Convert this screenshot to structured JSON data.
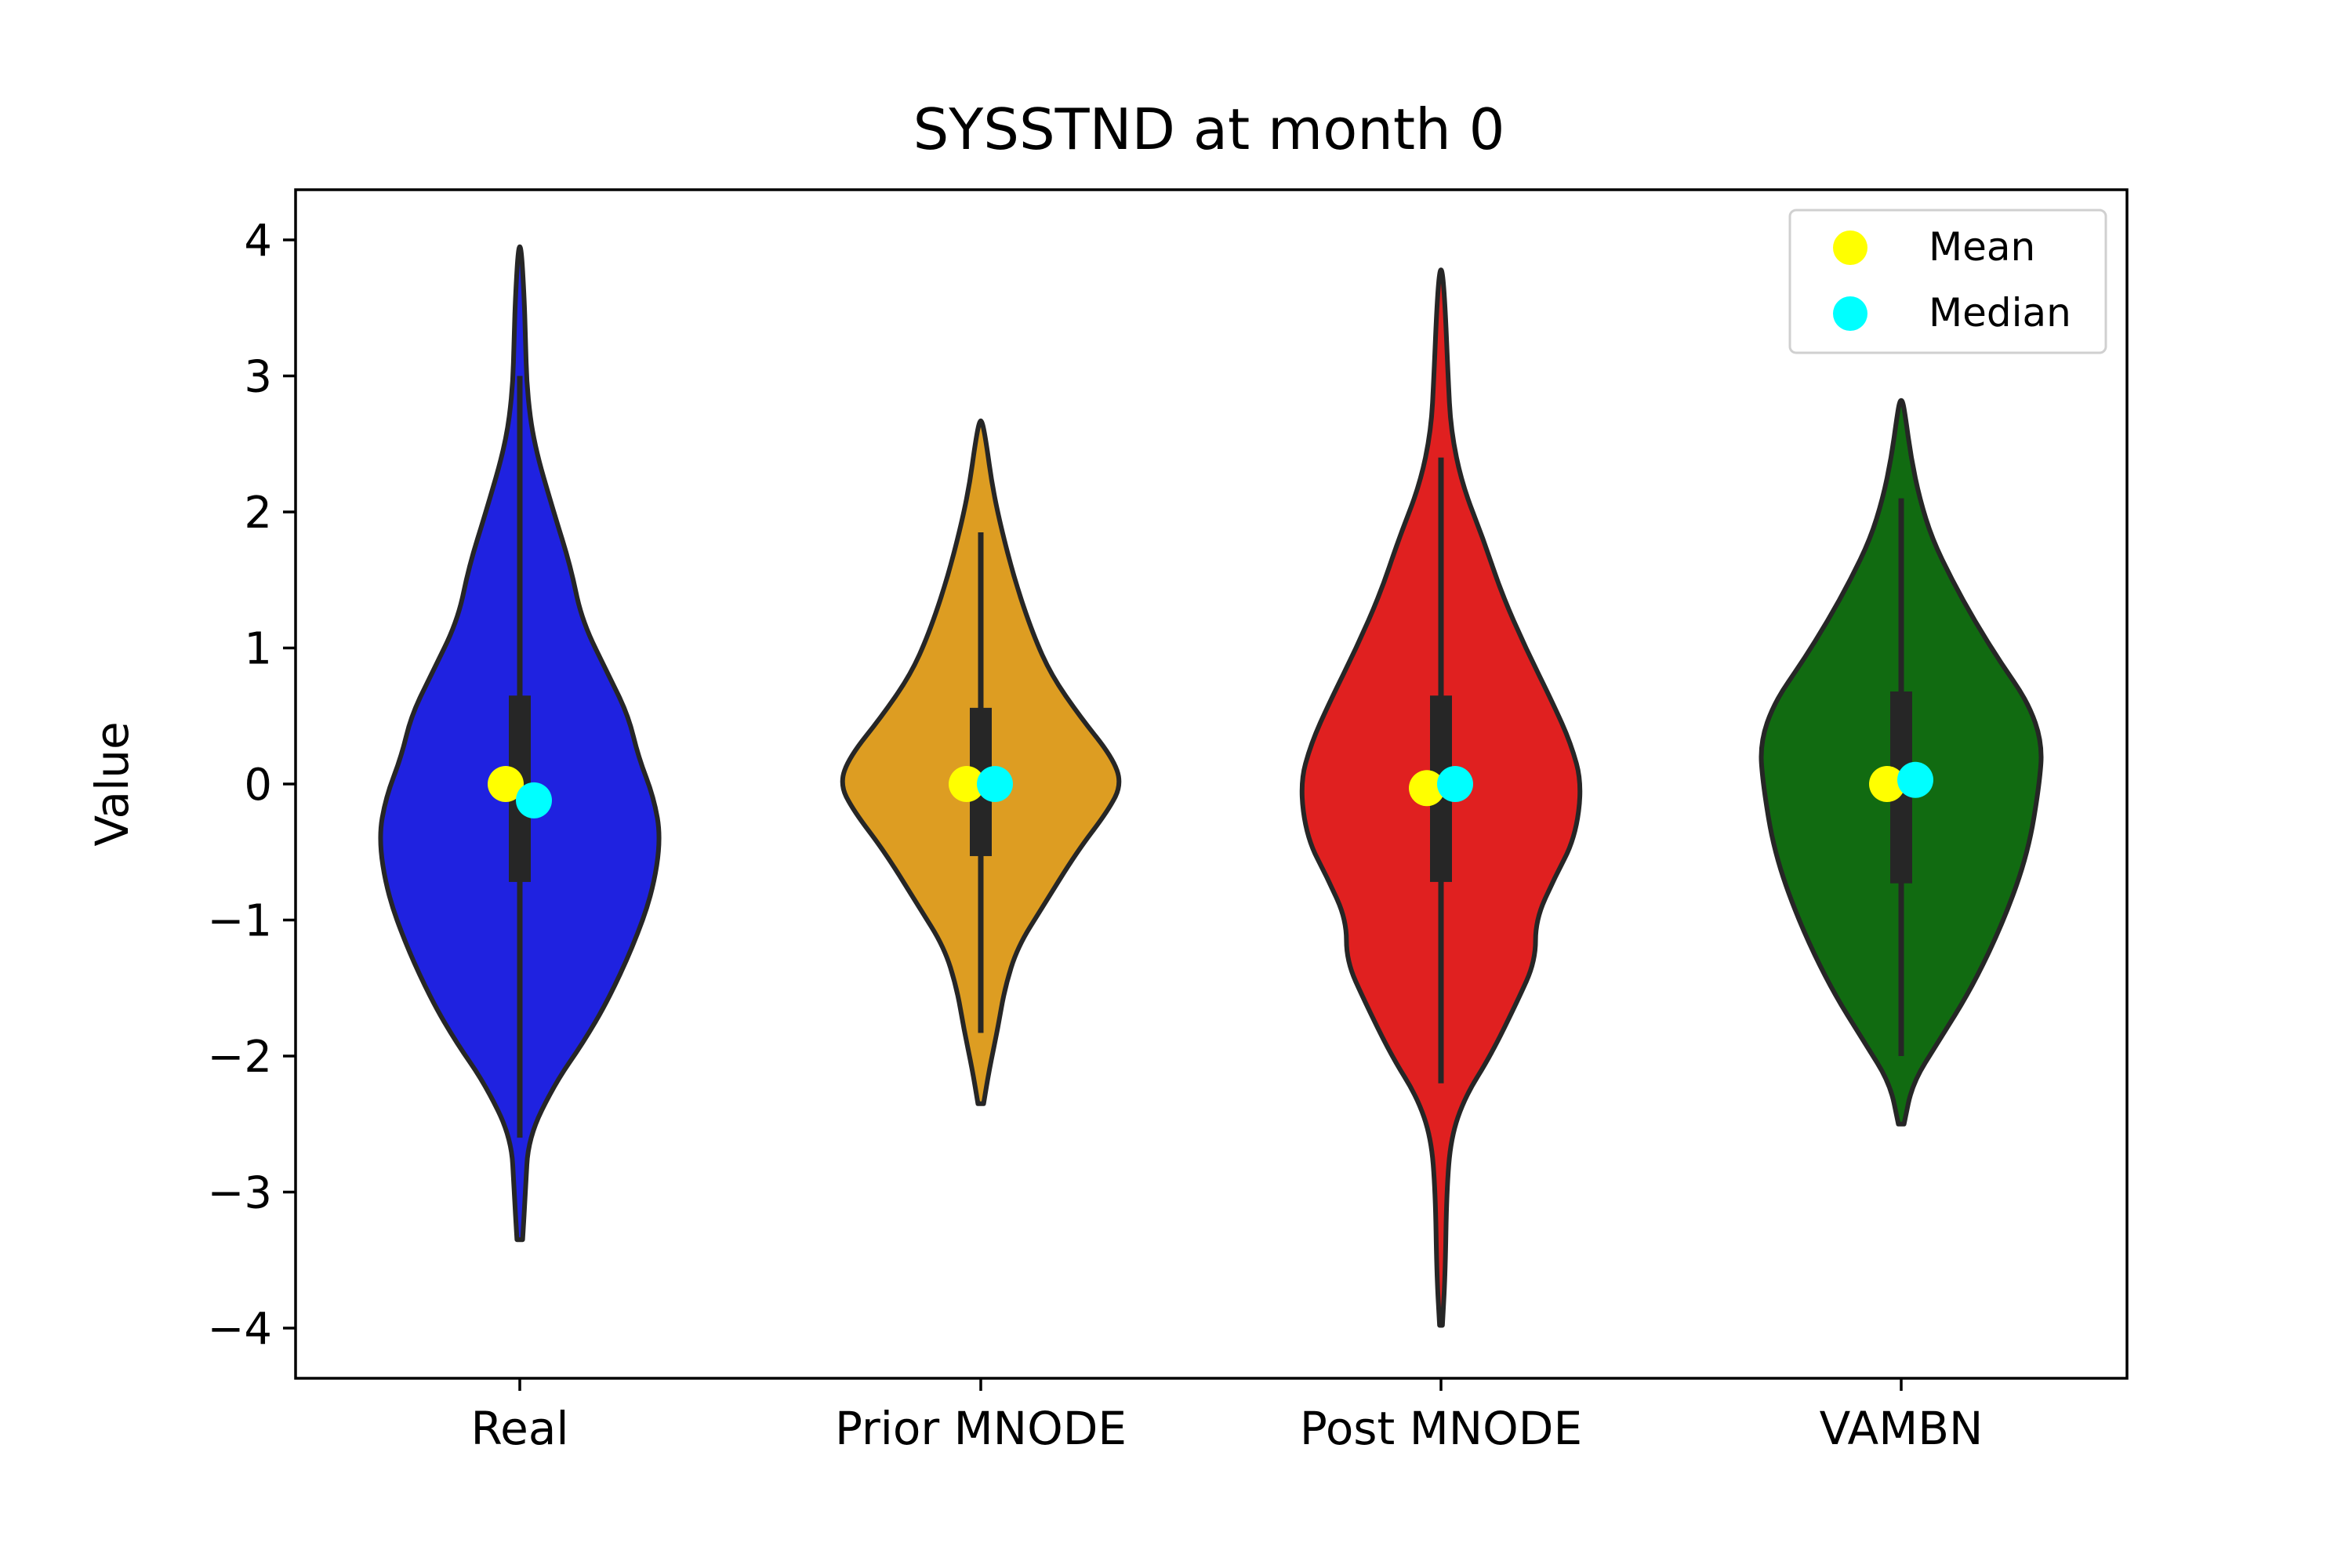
{
  "chart_data": {
    "type": "violin",
    "title": "SYSSTND at month 0",
    "xlabel": "",
    "ylabel": "Value",
    "ylim": [
      -4.4,
      4.35
    ],
    "yticks": [
      4,
      3,
      2,
      1,
      0,
      -1,
      -2,
      -3,
      -4
    ],
    "ytick_labels": [
      "4",
      "3",
      "2",
      "1",
      "0",
      "−1",
      "−2",
      "−3",
      "−4"
    ],
    "grid": false,
    "legend_position": "top-right",
    "legend": [
      {
        "label": "Mean",
        "color": "#ffff00"
      },
      {
        "label": "Median",
        "color": "#00ffff"
      }
    ],
    "categories": [
      "Real",
      "Prior MNODE",
      "Post MNODE",
      "VAMBN"
    ],
    "series": [
      {
        "category": "Real",
        "color": "#1f22e0",
        "min": -3.35,
        "max": 3.95,
        "q1": -0.72,
        "q3": 0.65,
        "whisker_low": -2.6,
        "whisker_high": 3.0,
        "mean": 0.0,
        "median": -0.12,
        "profile": [
          [
            -3.35,
            0.02
          ],
          [
            -3.0,
            0.04
          ],
          [
            -2.6,
            0.06
          ],
          [
            -2.2,
            0.25
          ],
          [
            -1.9,
            0.45
          ],
          [
            -1.6,
            0.62
          ],
          [
            -1.2,
            0.8
          ],
          [
            -0.8,
            0.94
          ],
          [
            -0.4,
            1.0
          ],
          [
            -0.1,
            0.95
          ],
          [
            0.2,
            0.84
          ],
          [
            0.5,
            0.77
          ],
          [
            0.8,
            0.63
          ],
          [
            1.2,
            0.44
          ],
          [
            1.6,
            0.36
          ],
          [
            2.0,
            0.24
          ],
          [
            2.5,
            0.1
          ],
          [
            2.9,
            0.05
          ],
          [
            3.3,
            0.04
          ],
          [
            3.6,
            0.03
          ],
          [
            3.95,
            0.01
          ]
        ]
      },
      {
        "category": "Prior MNODE",
        "color": "#dd9d22",
        "min": -2.35,
        "max": 2.67,
        "q1": -0.53,
        "q3": 0.56,
        "whisker_low": -1.83,
        "whisker_high": 1.85,
        "mean": 0.0,
        "median": 0.0,
        "profile": [
          [
            -2.35,
            0.02
          ],
          [
            -2.1,
            0.06
          ],
          [
            -1.8,
            0.12
          ],
          [
            -1.5,
            0.17
          ],
          [
            -1.2,
            0.26
          ],
          [
            -0.9,
            0.44
          ],
          [
            -0.5,
            0.68
          ],
          [
            -0.2,
            0.9
          ],
          [
            0.0,
            1.0
          ],
          [
            0.2,
            0.93
          ],
          [
            0.5,
            0.7
          ],
          [
            0.8,
            0.5
          ],
          [
            1.1,
            0.37
          ],
          [
            1.5,
            0.24
          ],
          [
            1.9,
            0.14
          ],
          [
            2.2,
            0.08
          ],
          [
            2.5,
            0.04
          ],
          [
            2.67,
            0.01
          ]
        ]
      },
      {
        "category": "Post MNODE",
        "color": "#e02020",
        "min": -3.98,
        "max": 3.78,
        "q1": -0.72,
        "q3": 0.65,
        "whisker_low": -2.2,
        "whisker_high": 2.4,
        "mean": -0.03,
        "median": 0.0,
        "profile": [
          [
            -3.98,
            0.01
          ],
          [
            -3.6,
            0.03
          ],
          [
            -3.0,
            0.04
          ],
          [
            -2.6,
            0.07
          ],
          [
            -2.3,
            0.17
          ],
          [
            -2.0,
            0.35
          ],
          [
            -1.6,
            0.54
          ],
          [
            -1.3,
            0.67
          ],
          [
            -1.0,
            0.67
          ],
          [
            -0.7,
            0.8
          ],
          [
            -0.4,
            0.95
          ],
          [
            0.0,
            1.0
          ],
          [
            0.3,
            0.92
          ],
          [
            0.6,
            0.79
          ],
          [
            1.0,
            0.6
          ],
          [
            1.4,
            0.43
          ],
          [
            1.8,
            0.3
          ],
          [
            2.2,
            0.15
          ],
          [
            2.6,
            0.07
          ],
          [
            3.0,
            0.05
          ],
          [
            3.5,
            0.03
          ],
          [
            3.78,
            0.01
          ]
        ]
      },
      {
        "category": "VAMBN",
        "color": "#116b11",
        "min": -2.5,
        "max": 2.82,
        "q1": -0.73,
        "q3": 0.68,
        "whisker_low": -2.0,
        "whisker_high": 2.1,
        "mean": 0.0,
        "median": 0.03,
        "profile": [
          [
            -2.5,
            0.02
          ],
          [
            -2.2,
            0.08
          ],
          [
            -1.9,
            0.26
          ],
          [
            -1.5,
            0.5
          ],
          [
            -1.0,
            0.73
          ],
          [
            -0.5,
            0.9
          ],
          [
            0.0,
            0.98
          ],
          [
            0.3,
            1.0
          ],
          [
            0.6,
            0.9
          ],
          [
            0.9,
            0.7
          ],
          [
            1.2,
            0.52
          ],
          [
            1.5,
            0.36
          ],
          [
            1.8,
            0.22
          ],
          [
            2.1,
            0.13
          ],
          [
            2.4,
            0.07
          ],
          [
            2.7,
            0.03
          ],
          [
            2.82,
            0.01
          ]
        ]
      }
    ]
  }
}
